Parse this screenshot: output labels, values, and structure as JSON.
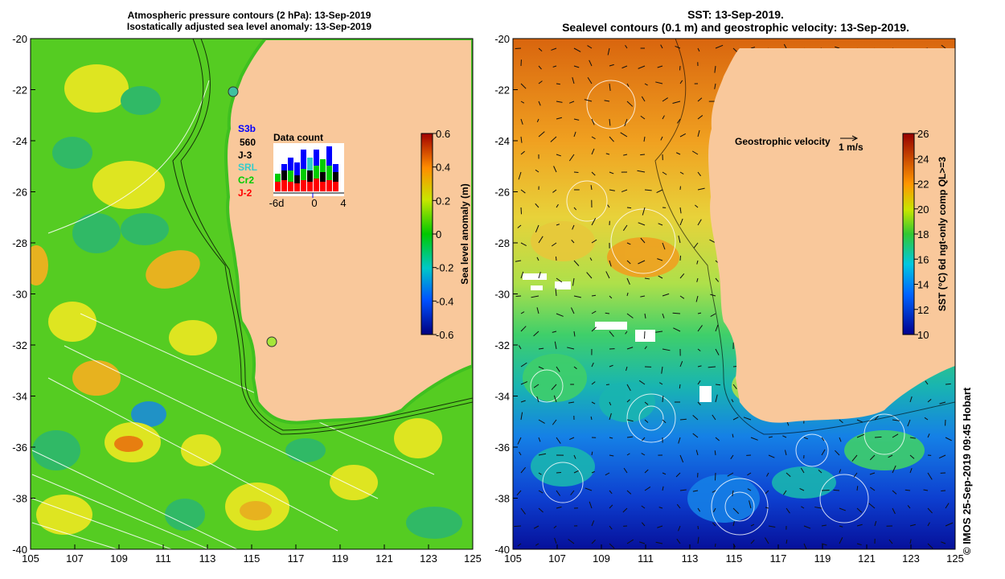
{
  "left_panel": {
    "title_line1": "Atmospheric pressure contours (2 hPa): 13-Sep-2019",
    "title_line2": "Isostatically adjusted sea level anomaly: 13-Sep-2019",
    "colorbar": {
      "label": "Sea level anomaly (m)",
      "ticks": [
        "0.6",
        "0.4",
        "0.2",
        "0",
        "-0.2",
        "-0.4",
        "-0.6"
      ],
      "range": [
        -0.6,
        0.6
      ]
    },
    "satellites": [
      {
        "name": "S3b",
        "color": "#0000ff"
      },
      {
        "name": "560",
        "color": "#000000"
      },
      {
        "name": "J-3",
        "color": "#000000"
      },
      {
        "name": "SRL",
        "color": "#33cccc"
      },
      {
        "name": "Cr2",
        "color": "#00cc00"
      },
      {
        "name": "J-2",
        "color": "#ff0000"
      }
    ],
    "data_count": {
      "title": "Data count",
      "xticks": [
        "-6d",
        "0",
        "4"
      ]
    }
  },
  "right_panel": {
    "title_line1": "SST: 13-Sep-2019.",
    "title_line2": "Sealevel contours (0.1 m) and geostrophic velocity: 13-Sep-2019.",
    "velocity_label": "Geostrophic velocity",
    "velocity_scale": "1 m/s",
    "colorbar": {
      "label": "SST (°C) 6d ngt-only comp QL>=3",
      "ticks": [
        "26",
        "24",
        "22",
        "20",
        "18",
        "16",
        "14",
        "12",
        "10"
      ],
      "range": [
        10,
        26
      ]
    }
  },
  "axes": {
    "x_ticks": [
      "105",
      "107",
      "109",
      "111",
      "113",
      "115",
      "117",
      "119",
      "121",
      "123",
      "125"
    ],
    "y_ticks": [
      "-20",
      "-22",
      "-24",
      "-26",
      "-28",
      "-30",
      "-32",
      "-34",
      "-36",
      "-38",
      "-40"
    ],
    "lon_range": [
      105,
      125
    ],
    "lat_range": [
      -40,
      -20
    ]
  },
  "credit": "© IMOS 25-Sep-2019 09:45 Hobart",
  "colors": {
    "land": "#f9c89b",
    "ocean_green": "#55cc22",
    "ocean_yellow": "#e6e622",
    "sst_warm": "#e08a14",
    "sst_cool": "#1144cc"
  }
}
